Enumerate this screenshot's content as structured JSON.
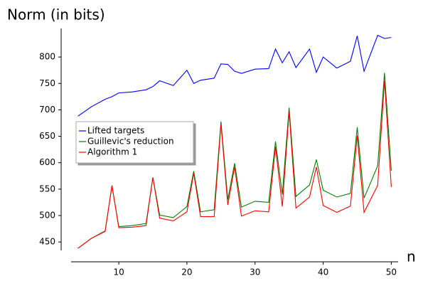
{
  "chart_data": {
    "type": "line",
    "title": "Norm (in bits)",
    "x_label": "n",
    "x": [
      4,
      6,
      8,
      9,
      10,
      12,
      14,
      15,
      16,
      18,
      20,
      21,
      22,
      24,
      25,
      26,
      27,
      28,
      30,
      32,
      33,
      34,
      35,
      36,
      38,
      39,
      40,
      42,
      44,
      45,
      46,
      48,
      49,
      50
    ],
    "series": [
      {
        "name": "Lifted targets",
        "color": "#0000ff",
        "values": [
          688,
          706,
          720,
          725,
          732,
          734,
          738,
          744,
          755,
          746,
          775,
          750,
          756,
          760,
          787,
          786,
          773,
          769,
          777,
          778,
          815,
          789,
          810,
          780,
          815,
          771,
          800,
          779,
          792,
          840,
          773,
          841,
          835,
          837
        ]
      },
      {
        "name": "Guillevic's reduction",
        "color": "#008000",
        "values": [
          438,
          457,
          471,
          556,
          479,
          481,
          485,
          572,
          501,
          496,
          517,
          584,
          507,
          511,
          678,
          530,
          599,
          516,
          527,
          525,
          640,
          540,
          704,
          536,
          558,
          606,
          548,
          535,
          542,
          667,
          533,
          594,
          770,
          585
        ]
      },
      {
        "name": "Algorithm 1",
        "color": "#ff0000",
        "values": [
          438,
          457,
          470,
          557,
          477,
          478,
          481,
          572,
          495,
          490,
          507,
          580,
          498,
          498,
          673,
          520,
          592,
          499,
          509,
          507,
          630,
          517,
          697,
          514,
          535,
          592,
          519,
          506,
          518,
          651,
          506,
          557,
          755,
          554
        ]
      }
    ],
    "xlim": [
      3,
      51
    ],
    "ylim": [
      434,
      854
    ],
    "xticks": [
      10,
      20,
      30,
      40,
      50
    ],
    "yticks": [
      450,
      500,
      550,
      600,
      650,
      700,
      750,
      800
    ],
    "legend": "left"
  }
}
